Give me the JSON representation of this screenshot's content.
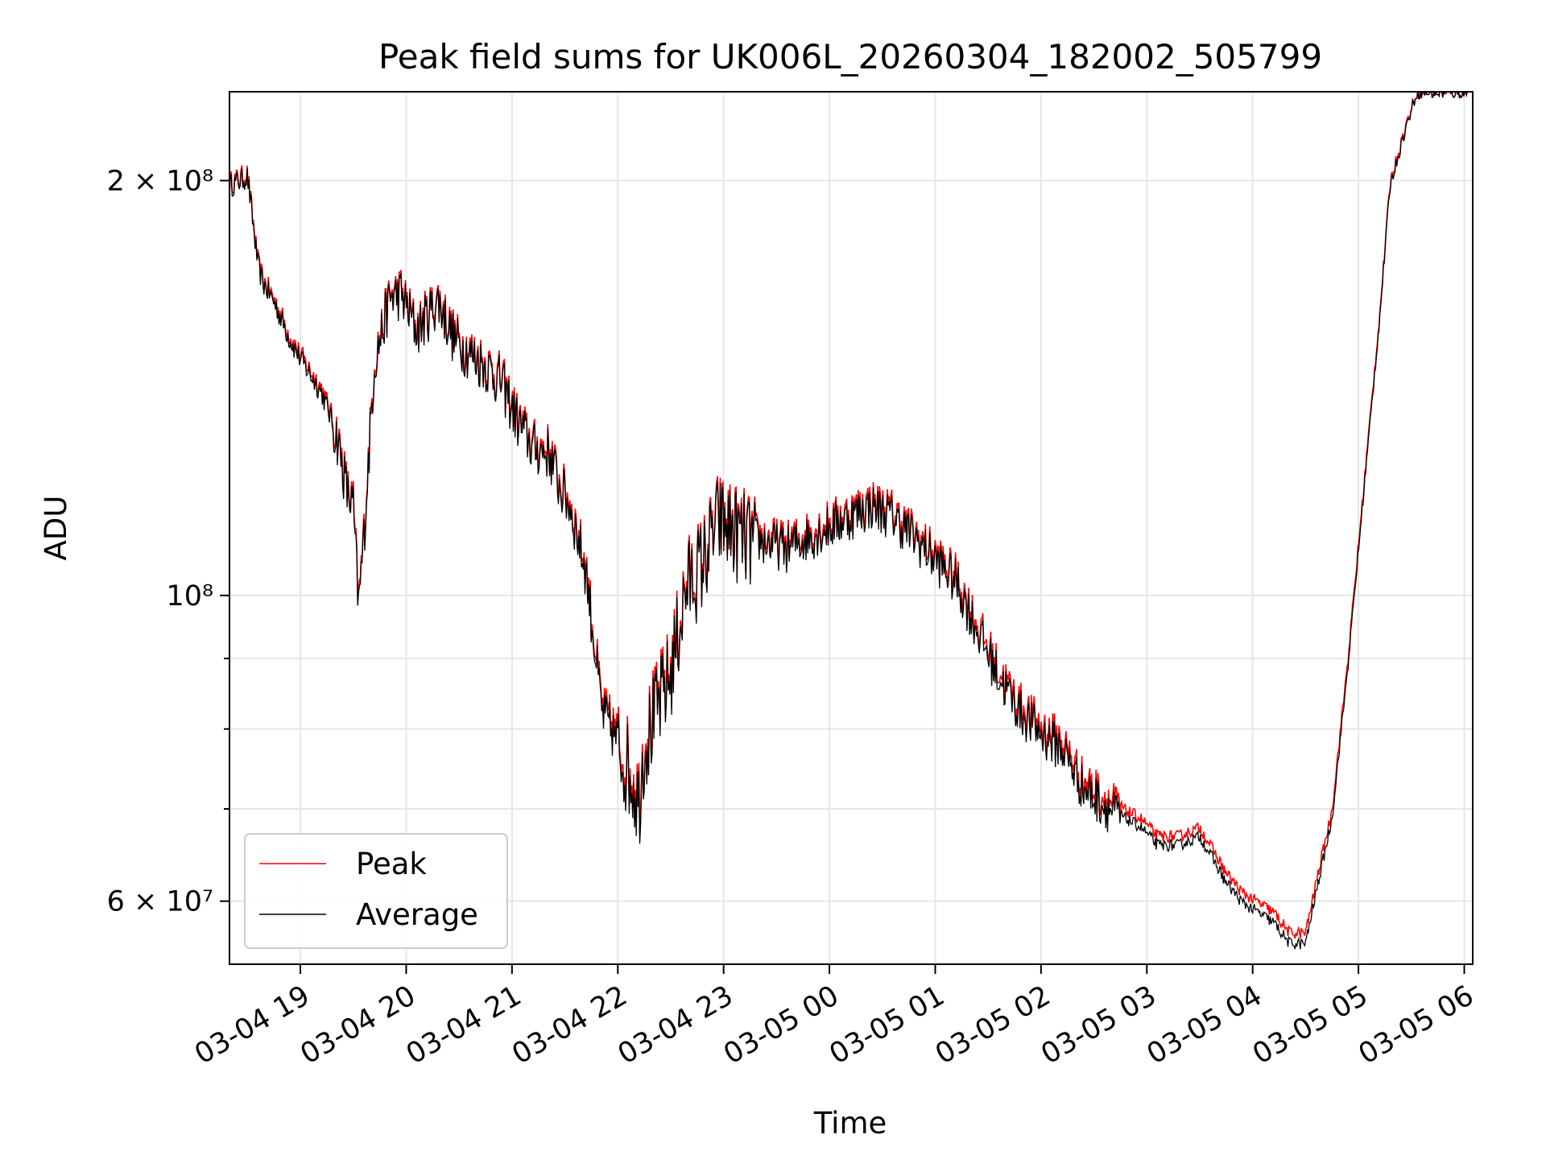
{
  "chart_data": {
    "type": "line",
    "title": "Peak field sums for UK006L_20260304_182002_505799",
    "xlabel": "Time",
    "ylabel": "ADU",
    "y_scale": "log",
    "ylim": [
      54000000,
      232000000
    ],
    "xlim_hours": [
      18.33,
      30.08
    ],
    "grid": true,
    "legend_location": "lower-left",
    "x_ticks": [
      {
        "label": "03-04 19",
        "hours": 19
      },
      {
        "label": "03-04 20",
        "hours": 20
      },
      {
        "label": "03-04 21",
        "hours": 21
      },
      {
        "label": "03-04 22",
        "hours": 22
      },
      {
        "label": "03-04 23",
        "hours": 23
      },
      {
        "label": "03-05 00",
        "hours": 24
      },
      {
        "label": "03-05 01",
        "hours": 25
      },
      {
        "label": "03-05 02",
        "hours": 26
      },
      {
        "label": "03-05 03",
        "hours": 27
      },
      {
        "label": "03-05 04",
        "hours": 28
      },
      {
        "label": "03-05 05",
        "hours": 29
      },
      {
        "label": "03-05 06",
        "hours": 30
      }
    ],
    "y_major_ticks": [
      {
        "label": "6 × 10⁷",
        "value": 60000000
      },
      {
        "label": "10⁸",
        "value": 100000000
      },
      {
        "label": "2 × 10⁸",
        "value": 200000000
      }
    ],
    "y_minor_ticks": [
      70000000,
      80000000,
      90000000
    ],
    "series": [
      {
        "name": "Peak",
        "color": "#ff0000",
        "x_hours": [
          18.33,
          18.5,
          18.6,
          18.65,
          18.75,
          18.9,
          19.0,
          19.2,
          19.35,
          19.45,
          19.5,
          19.55,
          19.6,
          19.7,
          19.85,
          19.95,
          20.1,
          20.3,
          20.45,
          20.6,
          20.75,
          20.9,
          21.05,
          21.2,
          21.35,
          21.45,
          21.55,
          21.7,
          21.85,
          22.0,
          22.1,
          22.2,
          22.25,
          22.35,
          22.5,
          22.65,
          22.8,
          22.95,
          23.1,
          23.25,
          23.4,
          23.6,
          23.8,
          24.0,
          24.2,
          24.4,
          24.6,
          24.8,
          25.0,
          25.2,
          25.4,
          25.6,
          25.8,
          26.0,
          26.2,
          26.4,
          26.6,
          26.7,
          26.8,
          26.95,
          27.1,
          27.3,
          27.5,
          27.6,
          27.75,
          27.9,
          28.05,
          28.2,
          28.35,
          28.5,
          28.6,
          28.75,
          28.9,
          29.05,
          29.2,
          29.3,
          29.45,
          29.55,
          29.65,
          29.75,
          29.85,
          29.95,
          30.03
        ],
        "values": [
          200000000,
          203000000,
          175000000,
          170000000,
          165000000,
          155000000,
          150000000,
          142000000,
          132000000,
          120000000,
          118000000,
          100000000,
          112000000,
          150000000,
          167000000,
          168000000,
          158000000,
          166000000,
          156000000,
          152000000,
          149000000,
          145000000,
          136000000,
          130000000,
          129000000,
          122000000,
          118000000,
          106000000,
          84000000,
          80000000,
          77000000,
          73000000,
          80000000,
          84000000,
          90000000,
          104000000,
          108000000,
          116000000,
          114000000,
          112000000,
          111000000,
          110000000,
          112000000,
          114000000,
          116000000,
          118000000,
          116000000,
          112000000,
          108000000,
          104000000,
          96000000,
          89000000,
          84000000,
          81000000,
          79000000,
          74000000,
          72000000,
          71000000,
          70000000,
          69000000,
          67000000,
          67000000,
          68000000,
          66000000,
          63000000,
          61000000,
          60000000,
          59000000,
          57000000,
          57000000,
          62000000,
          70000000,
          90000000,
          120000000,
          160000000,
          200000000,
          220000000,
          232000000,
          232000000,
          232000000,
          232000000,
          232000000,
          232000000
        ]
      },
      {
        "name": "Average",
        "color": "#000000",
        "x_hours": [
          18.33,
          18.5,
          18.6,
          18.65,
          18.75,
          18.9,
          19.0,
          19.2,
          19.35,
          19.45,
          19.5,
          19.55,
          19.6,
          19.7,
          19.85,
          19.95,
          20.1,
          20.3,
          20.45,
          20.6,
          20.75,
          20.9,
          21.05,
          21.2,
          21.35,
          21.45,
          21.55,
          21.7,
          21.85,
          22.0,
          22.1,
          22.2,
          22.25,
          22.35,
          22.5,
          22.65,
          22.8,
          22.95,
          23.1,
          23.25,
          23.4,
          23.6,
          23.8,
          24.0,
          24.2,
          24.4,
          24.6,
          24.8,
          25.0,
          25.2,
          25.4,
          25.6,
          25.8,
          26.0,
          26.2,
          26.4,
          26.6,
          26.7,
          26.8,
          26.95,
          27.1,
          27.3,
          27.5,
          27.6,
          27.75,
          27.9,
          28.05,
          28.2,
          28.35,
          28.5,
          28.6,
          28.75,
          28.9,
          29.05,
          29.2,
          29.3,
          29.45,
          29.55,
          29.65,
          29.75,
          29.85,
          29.95,
          30.03
        ],
        "values": [
          199000000,
          202000000,
          174000000,
          169000000,
          164000000,
          154000000,
          149000000,
          141000000,
          131000000,
          119000000,
          117000000,
          99000000,
          111000000,
          149000000,
          166000000,
          167000000,
          157000000,
          165000000,
          155000000,
          151000000,
          148000000,
          144000000,
          135000000,
          129000000,
          128000000,
          121000000,
          117000000,
          105000000,
          83000000,
          79000000,
          76000000,
          72000000,
          79000000,
          83000000,
          89000000,
          103000000,
          107000000,
          115000000,
          113000000,
          111000000,
          110000000,
          109000000,
          111000000,
          113000000,
          115000000,
          117000000,
          115000000,
          111000000,
          107000000,
          103000000,
          95000000,
          88000000,
          83000000,
          80000000,
          78000000,
          73000000,
          71000000,
          70000000,
          69000000,
          68000000,
          66000000,
          66000000,
          67000000,
          65000000,
          62000000,
          60000000,
          59000000,
          58000000,
          56000000,
          56000000,
          61000000,
          69000000,
          89000000,
          119000000,
          159000000,
          199000000,
          219000000,
          232000000,
          232000000,
          232000000,
          232000000,
          232000000,
          232000000
        ]
      }
    ]
  }
}
